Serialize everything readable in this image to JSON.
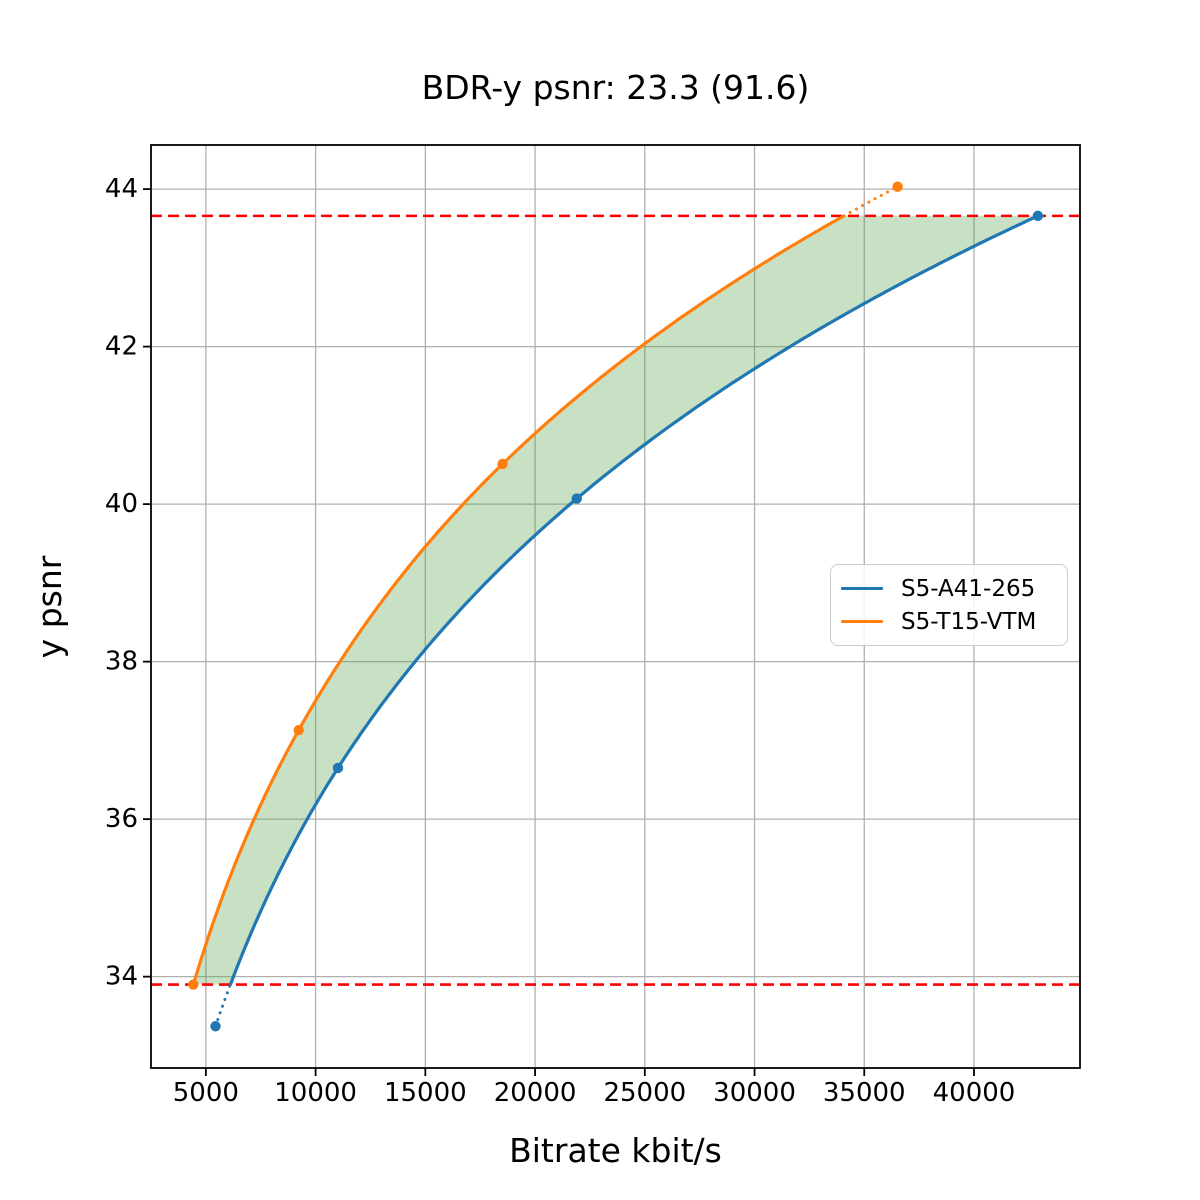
{
  "chart_data": {
    "type": "line",
    "title": "BDR-y psnr: 23.3 (91.6)",
    "xlabel": "Bitrate kbit/s",
    "ylabel": "y psnr",
    "xlim": [
      2500,
      44830
    ],
    "ylim": [
      32.84,
      44.56
    ],
    "xticks": [
      5000,
      10000,
      15000,
      20000,
      25000,
      30000,
      35000,
      40000
    ],
    "yticks": [
      34,
      36,
      38,
      40,
      42,
      44
    ],
    "grid": true,
    "legend": {
      "position": "center-right"
    },
    "series": [
      {
        "name": "S5-A41-265",
        "color": "#1f77b4",
        "points": [
          [
            5440,
            33.37
          ],
          [
            11020,
            36.65
          ],
          [
            21900,
            40.07
          ],
          [
            42910,
            43.66
          ]
        ]
      },
      {
        "name": "S5-T15-VTM",
        "color": "#ff7f0e",
        "points": [
          [
            4430,
            33.9
          ],
          [
            9230,
            37.13
          ],
          [
            18520,
            40.51
          ],
          [
            36520,
            44.03
          ]
        ]
      }
    ],
    "hlines": [
      {
        "y": 43.66,
        "color": "#ff0000",
        "style": "dashed"
      },
      {
        "y": 33.9,
        "color": "#ff0000",
        "style": "dashed"
      }
    ],
    "fill_between": {
      "lower": 33.9,
      "upper": 43.66,
      "color": "#4a9b3c",
      "alpha": 0.3
    },
    "colors": {
      "grid": "#b0b0b0",
      "spine": "#000000"
    }
  }
}
